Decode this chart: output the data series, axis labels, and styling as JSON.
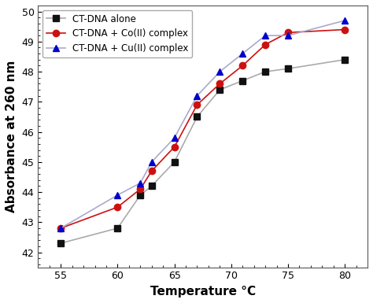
{
  "title": "",
  "xlabel": "Temperature °C",
  "ylabel": "Absorbance at 260 nm",
  "xlim": [
    53,
    82
  ],
  "ylim": [
    0.415,
    0.502
  ],
  "xticks": [
    55,
    60,
    65,
    70,
    75,
    80
  ],
  "yticks": [
    0.42,
    0.43,
    0.44,
    0.45,
    0.46,
    0.47,
    0.48,
    0.49,
    0.5
  ],
  "ytick_labels": [
    "42",
    "43",
    "44",
    "45",
    "46",
    "47",
    "48",
    "49",
    "50"
  ],
  "series": [
    {
      "label": "CT-DNA alone",
      "line_color": "#aaaaaa",
      "marker": "s",
      "markercolor": "#111111",
      "x": [
        55,
        60,
        62,
        63,
        65,
        67,
        69,
        71,
        73,
        75,
        80
      ],
      "y": [
        0.423,
        0.428,
        0.439,
        0.442,
        0.45,
        0.465,
        0.474,
        0.477,
        0.48,
        0.481,
        0.484
      ]
    },
    {
      "label": "CT-DNA + Co(II) complex",
      "line_color": "#cc1111",
      "marker": "o",
      "markercolor": "#cc1111",
      "x": [
        55,
        60,
        62,
        63,
        65,
        67,
        69,
        71,
        73,
        75,
        80
      ],
      "y": [
        0.428,
        0.435,
        0.441,
        0.447,
        0.455,
        0.469,
        0.476,
        0.482,
        0.489,
        0.493,
        0.494
      ]
    },
    {
      "label": "CT-DNA + Cu(II) complex",
      "line_color": "#aaaacc",
      "marker": "^",
      "markercolor": "#0000cc",
      "x": [
        55,
        60,
        62,
        63,
        65,
        67,
        69,
        71,
        73,
        75,
        80
      ],
      "y": [
        0.428,
        0.439,
        0.443,
        0.45,
        0.458,
        0.472,
        0.48,
        0.486,
        0.492,
        0.492,
        0.497
      ]
    }
  ],
  "background_color": "#ffffff",
  "legend_loc": "upper left",
  "legend_fontsize": 8.5,
  "axis_label_fontsize": 11,
  "tick_fontsize": 9,
  "linewidth": 1.2,
  "markersize": 6,
  "marker_edgewidth": 1.0
}
